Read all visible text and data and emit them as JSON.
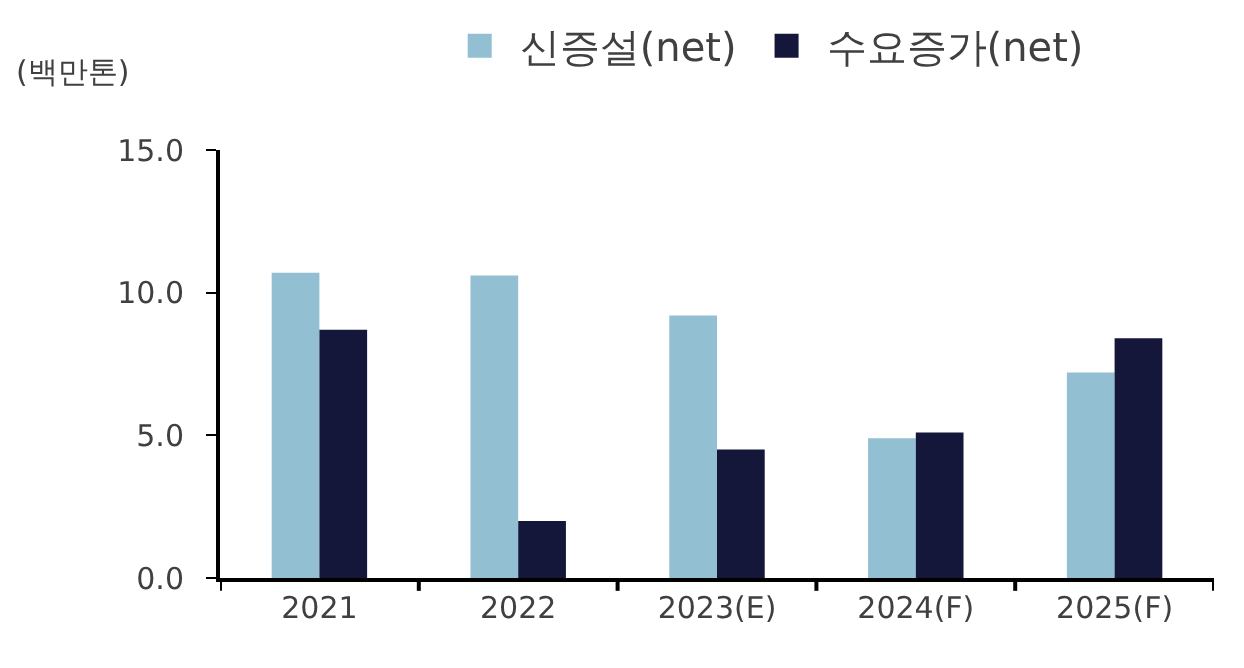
{
  "chart_data": {
    "type": "bar",
    "ylabel": "(백만톤)",
    "categories": [
      "2021",
      "2022",
      "2023(E)",
      "2024(F)",
      "2025(F)"
    ],
    "series": [
      {
        "name": "신증설(net)",
        "color": "#93bfd3",
        "values": [
          10.7,
          10.6,
          9.2,
          4.9,
          7.2
        ]
      },
      {
        "name": "수요증가(net)",
        "color": "#14163a",
        "values": [
          8.7,
          2.0,
          4.5,
          5.1,
          8.4
        ]
      }
    ],
    "ylim": [
      0,
      15
    ],
    "yticks": [
      {
        "value": 0,
        "label": "0.0"
      },
      {
        "value": 5,
        "label": "5.0"
      },
      {
        "value": 10,
        "label": "10.0"
      },
      {
        "value": 15,
        "label": "15.0"
      }
    ],
    "legend": "top"
  }
}
